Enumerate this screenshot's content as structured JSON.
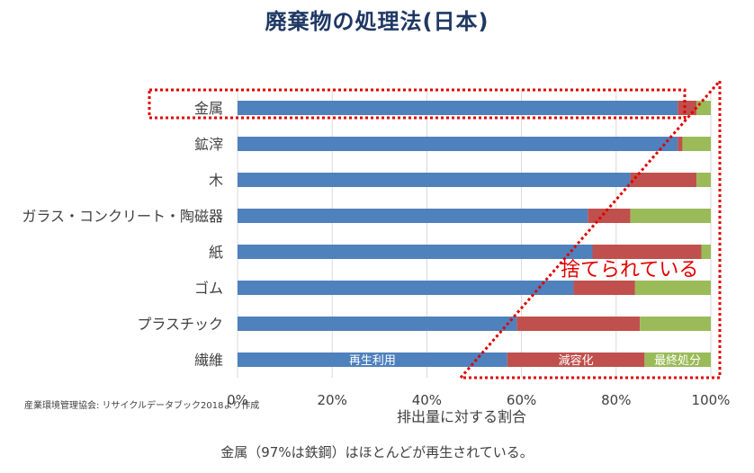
{
  "title": "廃棄物の処理法(日本)",
  "source_note": "産業環境管理協会: リサイクルデータブック2018より作成",
  "caption": "金属（97%は鉄鋼）はほとんどが再生されている。",
  "annotation": "捨てられている",
  "colors": {
    "recycle": "#4f81bd",
    "reduce": "#c0504d",
    "landfill": "#9bbb59",
    "highlight": "#e00000",
    "title": "#1f3864"
  },
  "chart_data": {
    "type": "bar",
    "orientation": "horizontal",
    "stacked": true,
    "categories": [
      "金属",
      "鉱滓",
      "木",
      "ガラス・コンクリート・陶磁器",
      "紙",
      "ゴム",
      "プラスチック",
      "繊維"
    ],
    "series": [
      {
        "name": "再生利用",
        "values": [
          93,
          93,
          83,
          74,
          75,
          71,
          59,
          57
        ]
      },
      {
        "name": "減容化",
        "values": [
          4,
          1,
          14,
          9,
          23,
          13,
          26,
          29
        ]
      },
      {
        "name": "最終処分",
        "values": [
          3,
          6,
          3,
          17,
          2,
          16,
          15,
          14
        ]
      }
    ],
    "xlabel": "排出量に対する割合",
    "xlim": [
      0,
      100
    ],
    "xticks": [
      "0%",
      "20%",
      "40%",
      "60%",
      "80%",
      "100%"
    ],
    "legend": "inside-last-bar",
    "grid": true
  }
}
